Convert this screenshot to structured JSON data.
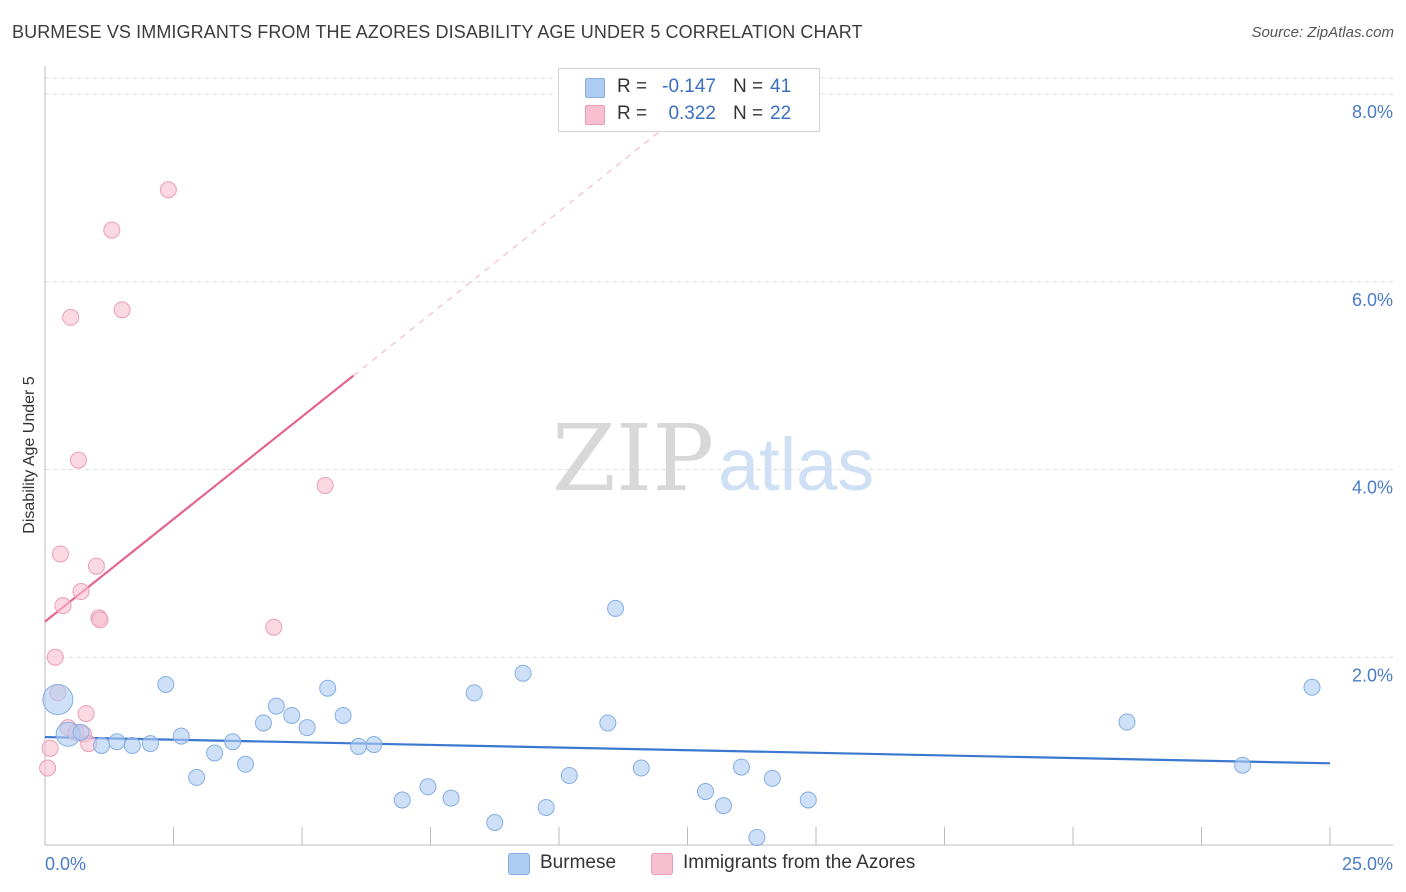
{
  "header": {
    "title": "BURMESE VS IMMIGRANTS FROM THE AZORES DISABILITY AGE UNDER 5 CORRELATION CHART",
    "source": "Source: ZipAtlas.com"
  },
  "watermark": {
    "zip": "ZIP",
    "atlas": "atlas"
  },
  "legend": {
    "rows": [
      {
        "r_label": "R =",
        "r_value": "-0.147",
        "n_label": "N =",
        "n_value": "41",
        "color": "#aecbf2"
      },
      {
        "r_label": "R =",
        "r_value": "0.322",
        "n_label": "N =",
        "n_value": "22",
        "color": "#f7bfd0"
      }
    ]
  },
  "bottom_legend": [
    {
      "label": "Burmese",
      "color": "#aecbf2"
    },
    {
      "label": "Immigrants from the Azores",
      "color": "#f7bfd0"
    }
  ],
  "colors": {
    "blue_fill": "#aecbf2",
    "blue_stroke": "#86aee3",
    "blue_line": "#3a78d0",
    "pink_fill": "#f7bfd0",
    "pink_stroke": "#eb9db5",
    "pink_line": "#e5638f",
    "grid": "#dddddd",
    "tick_text": "#4a7cc9"
  },
  "chart_data": {
    "type": "scatter",
    "title": "BURMESE VS IMMIGRANTS FROM THE AZORES DISABILITY AGE UNDER 5 CORRELATION CHART",
    "xlabel": "",
    "ylabel": "Disability Age Under 5",
    "xlim": [
      0,
      25
    ],
    "ylim": [
      0,
      8
    ],
    "x_tick_labels": [
      "0.0%",
      "25.0%"
    ],
    "y_ticks": [
      2,
      4,
      6,
      8
    ],
    "y_tick_labels": [
      "2.0%",
      "4.0%",
      "6.0%",
      "8.0%"
    ],
    "grid": true,
    "series": [
      {
        "name": "Burmese",
        "r": -0.147,
        "n": 41,
        "trend": {
          "x0": 0,
          "y0": 1.15,
          "x1": 25,
          "y1": 0.87,
          "dashed_to": 25
        },
        "points": [
          {
            "x": 0.25,
            "y": 1.55,
            "s": 3
          },
          {
            "x": 0.45,
            "y": 1.18,
            "s": 2
          },
          {
            "x": 0.7,
            "y": 1.2,
            "s": 1
          },
          {
            "x": 1.1,
            "y": 1.06,
            "s": 1
          },
          {
            "x": 1.4,
            "y": 1.1,
            "s": 1
          },
          {
            "x": 1.7,
            "y": 1.06,
            "s": 1
          },
          {
            "x": 2.05,
            "y": 1.08,
            "s": 1
          },
          {
            "x": 2.35,
            "y": 1.71,
            "s": 1
          },
          {
            "x": 2.65,
            "y": 1.16,
            "s": 1
          },
          {
            "x": 2.95,
            "y": 0.72,
            "s": 1
          },
          {
            "x": 3.3,
            "y": 0.98,
            "s": 1
          },
          {
            "x": 3.65,
            "y": 1.1,
            "s": 1
          },
          {
            "x": 3.9,
            "y": 0.86,
            "s": 1
          },
          {
            "x": 4.25,
            "y": 1.3,
            "s": 1
          },
          {
            "x": 4.5,
            "y": 1.48,
            "s": 1
          },
          {
            "x": 4.8,
            "y": 1.38,
            "s": 1
          },
          {
            "x": 5.1,
            "y": 1.25,
            "s": 1
          },
          {
            "x": 5.5,
            "y": 1.67,
            "s": 1
          },
          {
            "x": 5.8,
            "y": 1.38,
            "s": 1
          },
          {
            "x": 6.1,
            "y": 1.05,
            "s": 1
          },
          {
            "x": 6.4,
            "y": 1.07,
            "s": 1
          },
          {
            "x": 6.95,
            "y": 0.48,
            "s": 1
          },
          {
            "x": 7.45,
            "y": 0.62,
            "s": 1
          },
          {
            "x": 7.9,
            "y": 0.5,
            "s": 1
          },
          {
            "x": 8.35,
            "y": 1.62,
            "s": 1
          },
          {
            "x": 8.75,
            "y": 0.24,
            "s": 1
          },
          {
            "x": 9.3,
            "y": 1.83,
            "s": 1
          },
          {
            "x": 9.75,
            "y": 0.4,
            "s": 1
          },
          {
            "x": 10.2,
            "y": 0.74,
            "s": 1
          },
          {
            "x": 10.95,
            "y": 1.3,
            "s": 1
          },
          {
            "x": 11.1,
            "y": 2.52,
            "s": 1
          },
          {
            "x": 11.6,
            "y": 0.82,
            "s": 1
          },
          {
            "x": 12.85,
            "y": 0.57,
            "s": 1
          },
          {
            "x": 13.2,
            "y": 0.42,
            "s": 1
          },
          {
            "x": 13.55,
            "y": 0.83,
            "s": 1
          },
          {
            "x": 13.85,
            "y": 0.08,
            "s": 1
          },
          {
            "x": 14.15,
            "y": 0.71,
            "s": 1
          },
          {
            "x": 14.85,
            "y": 0.48,
            "s": 1
          },
          {
            "x": 21.05,
            "y": 1.31,
            "s": 1
          },
          {
            "x": 23.3,
            "y": 0.85,
            "s": 1
          },
          {
            "x": 24.65,
            "y": 1.68,
            "s": 1
          }
        ]
      },
      {
        "name": "Immigrants from the Azores",
        "r": 0.322,
        "n": 22,
        "trend": {
          "x0": 0,
          "y0": 2.38,
          "x1": 6.0,
          "y1": 5.0,
          "dashed_to": 13.0
        },
        "points": [
          {
            "x": 0.05,
            "y": 0.82,
            "s": 1
          },
          {
            "x": 0.1,
            "y": 1.03,
            "s": 1
          },
          {
            "x": 0.2,
            "y": 2.0,
            "s": 1
          },
          {
            "x": 0.25,
            "y": 1.62,
            "s": 1
          },
          {
            "x": 0.3,
            "y": 3.1,
            "s": 1
          },
          {
            "x": 0.35,
            "y": 2.55,
            "s": 1
          },
          {
            "x": 0.45,
            "y": 1.25,
            "s": 1
          },
          {
            "x": 0.5,
            "y": 5.62,
            "s": 1
          },
          {
            "x": 0.6,
            "y": 1.2,
            "s": 1
          },
          {
            "x": 0.65,
            "y": 4.1,
            "s": 1
          },
          {
            "x": 0.7,
            "y": 2.7,
            "s": 1
          },
          {
            "x": 0.75,
            "y": 1.18,
            "s": 1
          },
          {
            "x": 0.8,
            "y": 1.4,
            "s": 1
          },
          {
            "x": 0.85,
            "y": 1.08,
            "s": 1
          },
          {
            "x": 1.0,
            "y": 2.97,
            "s": 1
          },
          {
            "x": 1.05,
            "y": 2.42,
            "s": 1
          },
          {
            "x": 1.07,
            "y": 2.4,
            "s": 1
          },
          {
            "x": 1.3,
            "y": 6.55,
            "s": 1
          },
          {
            "x": 1.5,
            "y": 5.7,
            "s": 1
          },
          {
            "x": 2.4,
            "y": 6.98,
            "s": 1
          },
          {
            "x": 4.45,
            "y": 2.32,
            "s": 1
          },
          {
            "x": 5.45,
            "y": 3.83,
            "s": 1
          }
        ]
      }
    ]
  }
}
